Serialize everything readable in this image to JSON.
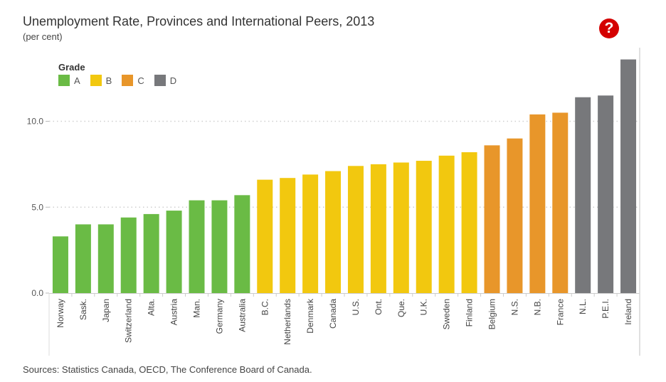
{
  "header": {
    "title": "Unemployment Rate, Provinces and International Peers, 2013",
    "subtitle": "(per cent)",
    "help_icon": "question-circle-icon",
    "help_symbol": "?"
  },
  "legend": {
    "title": "Grade",
    "items": [
      {
        "label": "A",
        "color": "#6abb45"
      },
      {
        "label": "B",
        "color": "#f2c80f"
      },
      {
        "label": "C",
        "color": "#e8962a"
      },
      {
        "label": "D",
        "color": "#77787b"
      }
    ]
  },
  "footer": {
    "source": "Sources: Statistics Canada, OECD, The Conference Board of Canada."
  },
  "chart_data": {
    "type": "bar",
    "title": "Unemployment Rate, Provinces and International Peers, 2013",
    "subtitle": "(per cent)",
    "xlabel": "",
    "ylabel": "per cent",
    "ylim": [
      0,
      14
    ],
    "yticks": [
      0,
      5,
      10
    ],
    "ytick_labels": [
      "0.0",
      "5.0",
      "10.0"
    ],
    "grid": true,
    "legend_position": "top-left",
    "categories": [
      "Norway",
      "Sask.",
      "Japan",
      "Switzerland",
      "Alta.",
      "Austria",
      "Man.",
      "Germany",
      "Australia",
      "B.C.",
      "Netherlands",
      "Denmark",
      "Canada",
      "U.S.",
      "Ont.",
      "Que.",
      "U.K.",
      "Sweden",
      "Finland",
      "Belgium",
      "N.S.",
      "N.B.",
      "France",
      "N.L.",
      "P.E.I.",
      "Ireland"
    ],
    "values": [
      3.3,
      4.0,
      4.0,
      4.4,
      4.6,
      4.8,
      5.4,
      5.4,
      5.7,
      6.6,
      6.7,
      6.9,
      7.1,
      7.4,
      7.5,
      7.6,
      7.7,
      8.0,
      8.2,
      8.6,
      9.0,
      10.4,
      10.5,
      11.4,
      11.5,
      13.6
    ],
    "grades": [
      "A",
      "A",
      "A",
      "A",
      "A",
      "A",
      "A",
      "A",
      "A",
      "B",
      "B",
      "B",
      "B",
      "B",
      "B",
      "B",
      "B",
      "B",
      "B",
      "C",
      "C",
      "C",
      "C",
      "D",
      "D",
      "D"
    ]
  }
}
